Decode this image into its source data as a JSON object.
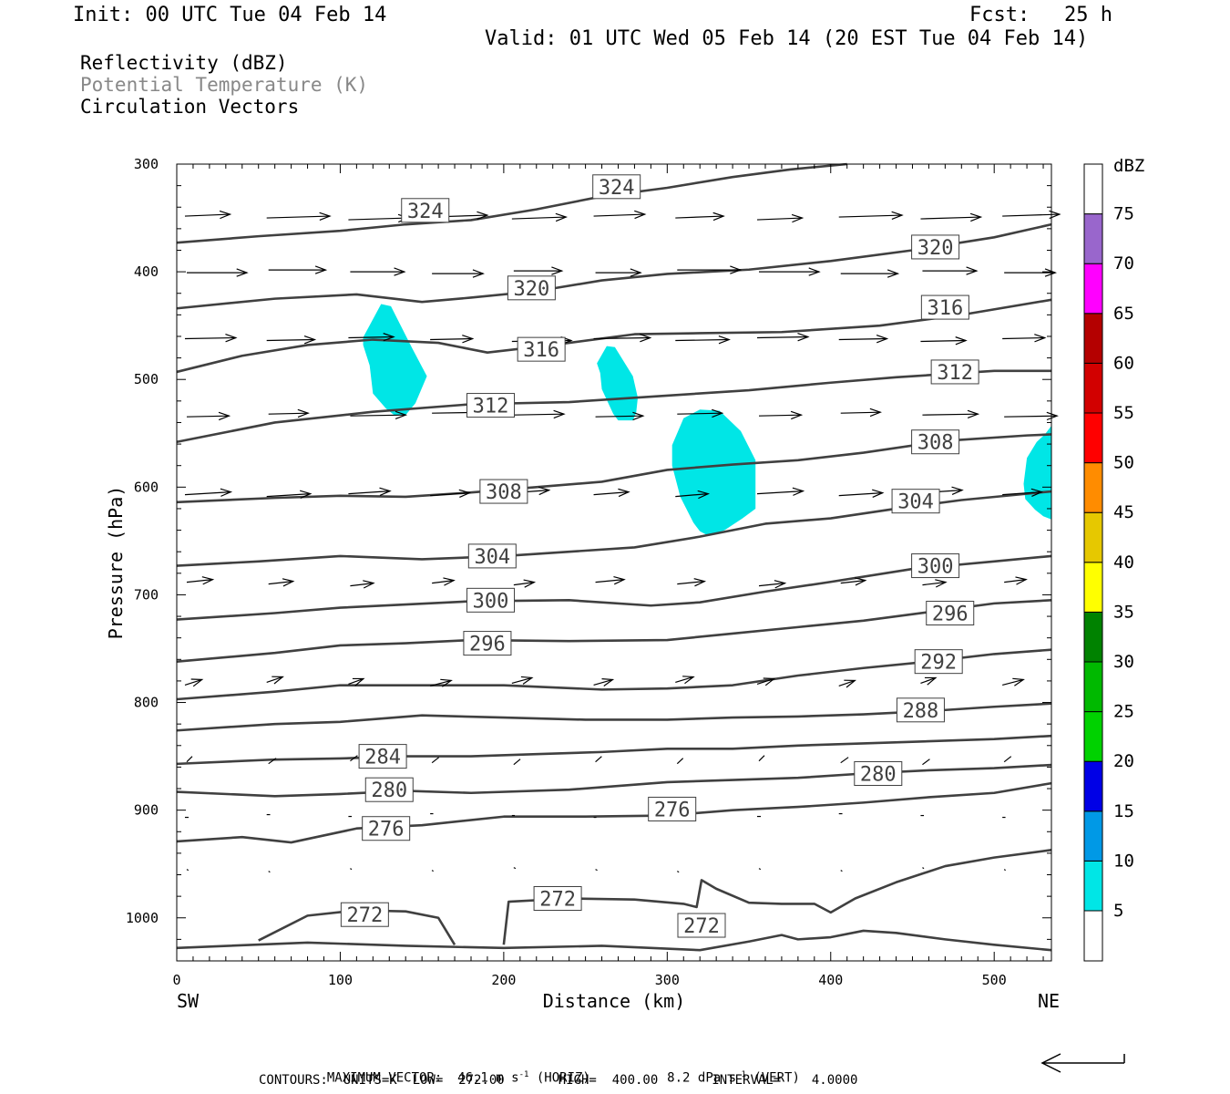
{
  "header": {
    "init": "Init: 00 UTC Tue 04 Feb 14",
    "fcst_label": "Fcst:",
    "fcst_value": "25 h",
    "valid": "Valid: 01 UTC Wed 05 Feb 14 (20 EST Tue 04 Feb 14)",
    "field1": "Reflectivity (dBZ)",
    "field2": "Potential Temperature (K)",
    "field3": "Circulation Vectors"
  },
  "footer": {
    "max_vector": "MAXIMUM VECTOR:  46.1 m s",
    "max_vector_horiz": "(HORIZ)",
    "max_vector_vert": "8.2 dPa s",
    "max_vector_vert_tail": "(VERT)",
    "exp": "-1",
    "contours": "CONTOURS:  UNITS=K  LOW=  272.00       HIGH=  400.00       INTERVAL=    4.0000"
  },
  "axis": {
    "ylabel": "Pressure (hPa)",
    "xlabel": "Distance (km)",
    "left_end": "SW",
    "right_end": "NE"
  },
  "colorbar": {
    "title": "dBZ",
    "ticks": [
      "5",
      "10",
      "15",
      "20",
      "25",
      "30",
      "35",
      "40",
      "45",
      "50",
      "55",
      "60",
      "65",
      "70",
      "75"
    ],
    "colors": [
      "#00e6e6",
      "#0099e6",
      "#0000e6",
      "#00d200",
      "#00b900",
      "#008200",
      "#ffff00",
      "#e6c800",
      "#ff8c00",
      "#ff0000",
      "#d20000",
      "#b40000",
      "#ff00ff",
      "#9966cc",
      "#ffffff"
    ]
  },
  "chart_data": {
    "type": "cross-section",
    "x_range": [
      0,
      535
    ],
    "y_range_hPa": [
      300,
      1040
    ],
    "x_ticks": [
      0,
      100,
      200,
      300,
      400,
      500
    ],
    "y_ticks": [
      300,
      400,
      500,
      600,
      700,
      800,
      900,
      1000
    ],
    "theta_contours": [
      {
        "label": "324",
        "points": [
          [
            0,
            373
          ],
          [
            50,
            367
          ],
          [
            100,
            362
          ],
          [
            140,
            356
          ],
          [
            180,
            352
          ],
          [
            220,
            342
          ],
          [
            260,
            330
          ],
          [
            300,
            322
          ],
          [
            340,
            312
          ],
          [
            375,
            305
          ],
          [
            410,
            300
          ]
        ],
        "labels_at": [
          [
            152,
            343
          ],
          [
            269,
            321
          ]
        ]
      },
      {
        "label": "320",
        "points": [
          [
            0,
            434
          ],
          [
            60,
            425
          ],
          [
            110,
            421
          ],
          [
            150,
            428
          ],
          [
            180,
            424
          ],
          [
            220,
            418
          ],
          [
            260,
            408
          ],
          [
            300,
            402
          ],
          [
            350,
            398
          ],
          [
            400,
            390
          ],
          [
            450,
            380
          ],
          [
            500,
            368
          ],
          [
            535,
            356
          ]
        ],
        "labels_at": [
          [
            217,
            415
          ],
          [
            464,
            377
          ]
        ]
      },
      {
        "label": "316",
        "points": [
          [
            0,
            493
          ],
          [
            40,
            478
          ],
          [
            80,
            468
          ],
          [
            120,
            463
          ],
          [
            160,
            466
          ],
          [
            190,
            475
          ],
          [
            230,
            468
          ],
          [
            280,
            458
          ],
          [
            320,
            457
          ],
          [
            370,
            456
          ],
          [
            430,
            450
          ],
          [
            480,
            440
          ],
          [
            535,
            426
          ]
        ],
        "labels_at": [
          [
            223,
            472
          ],
          [
            470,
            433
          ]
        ]
      },
      {
        "label": "312",
        "points": [
          [
            0,
            558
          ],
          [
            60,
            540
          ],
          [
            120,
            530
          ],
          [
            180,
            523
          ],
          [
            240,
            521
          ],
          [
            300,
            515
          ],
          [
            350,
            510
          ],
          [
            400,
            503
          ],
          [
            440,
            498
          ],
          [
            500,
            492
          ],
          [
            535,
            492
          ]
        ],
        "labels_at": [
          [
            192,
            524
          ],
          [
            476,
            493
          ]
        ]
      },
      {
        "label": "308",
        "points": [
          [
            0,
            614
          ],
          [
            60,
            610
          ],
          [
            100,
            608
          ],
          [
            140,
            609
          ],
          [
            180,
            605
          ],
          [
            220,
            600
          ],
          [
            260,
            595
          ],
          [
            300,
            584
          ],
          [
            340,
            579
          ],
          [
            380,
            575
          ],
          [
            420,
            568
          ],
          [
            470,
            557
          ],
          [
            520,
            552
          ],
          [
            535,
            551
          ]
        ],
        "labels_at": [
          [
            200,
            604
          ],
          [
            464,
            558
          ]
        ]
      },
      {
        "label": "304",
        "points": [
          [
            0,
            673
          ],
          [
            50,
            669
          ],
          [
            100,
            664
          ],
          [
            150,
            667
          ],
          [
            200,
            664
          ],
          [
            240,
            660
          ],
          [
            280,
            656
          ],
          [
            320,
            646
          ],
          [
            360,
            634
          ],
          [
            400,
            629
          ],
          [
            440,
            620
          ],
          [
            480,
            612
          ],
          [
            535,
            604
          ]
        ],
        "labels_at": [
          [
            193,
            664
          ],
          [
            452,
            613
          ]
        ]
      },
      {
        "label": "300",
        "points": [
          [
            0,
            723
          ],
          [
            60,
            717
          ],
          [
            100,
            712
          ],
          [
            140,
            709
          ],
          [
            180,
            706
          ],
          [
            240,
            705
          ],
          [
            290,
            710
          ],
          [
            320,
            707
          ],
          [
            360,
            697
          ],
          [
            400,
            688
          ],
          [
            450,
            676
          ],
          [
            500,
            669
          ],
          [
            535,
            664
          ]
        ],
        "labels_at": [
          [
            192,
            705
          ],
          [
            464,
            673
          ]
        ]
      },
      {
        "label": "296",
        "points": [
          [
            0,
            762
          ],
          [
            60,
            754
          ],
          [
            100,
            747
          ],
          [
            140,
            745
          ],
          [
            180,
            742
          ],
          [
            240,
            743
          ],
          [
            300,
            742
          ],
          [
            340,
            736
          ],
          [
            380,
            730
          ],
          [
            420,
            724
          ],
          [
            460,
            716
          ],
          [
            500,
            708
          ],
          [
            535,
            705
          ]
        ],
        "labels_at": [
          [
            190,
            745
          ],
          [
            473,
            717
          ]
        ]
      },
      {
        "label": "292",
        "points": [
          [
            0,
            797
          ],
          [
            60,
            790
          ],
          [
            100,
            784
          ],
          [
            150,
            784
          ],
          [
            200,
            784
          ],
          [
            260,
            788
          ],
          [
            300,
            787
          ],
          [
            340,
            784
          ],
          [
            380,
            775
          ],
          [
            420,
            768
          ],
          [
            460,
            762
          ],
          [
            500,
            755
          ],
          [
            535,
            751
          ]
        ],
        "labels_at": [
          466,
          762
        ]
      },
      {
        "label": "288",
        "points": [
          [
            0,
            826
          ],
          [
            60,
            820
          ],
          [
            100,
            818
          ],
          [
            150,
            812
          ],
          [
            200,
            814
          ],
          [
            250,
            816
          ],
          [
            300,
            816
          ],
          [
            340,
            814
          ],
          [
            380,
            813
          ],
          [
            420,
            811
          ],
          [
            460,
            808
          ],
          [
            500,
            804
          ],
          [
            535,
            801
          ]
        ],
        "labels_at": [
          [
            455,
            807
          ]
        ]
      },
      {
        "label": "284",
        "points": [
          [
            0,
            857
          ],
          [
            60,
            853
          ],
          [
            100,
            852
          ],
          [
            140,
            850
          ],
          [
            180,
            850
          ],
          [
            220,
            848
          ],
          [
            260,
            846
          ],
          [
            300,
            843
          ],
          [
            340,
            843
          ],
          [
            380,
            840
          ],
          [
            420,
            838
          ],
          [
            460,
            836
          ],
          [
            500,
            834
          ],
          [
            535,
            831
          ]
        ],
        "labels_at": [
          [
            126,
            850
          ]
        ]
      },
      {
        "label": "280",
        "points": [
          [
            0,
            883
          ],
          [
            60,
            887
          ],
          [
            100,
            885
          ],
          [
            140,
            882
          ],
          [
            180,
            884
          ],
          [
            240,
            881
          ],
          [
            300,
            874
          ],
          [
            340,
            872
          ],
          [
            380,
            870
          ],
          [
            420,
            866
          ],
          [
            460,
            863
          ],
          [
            500,
            861
          ],
          [
            535,
            858
          ]
        ],
        "labels_at": [
          [
            130,
            881
          ],
          [
            429,
            866
          ]
        ]
      },
      {
        "label": "276",
        "points": [
          [
            0,
            929
          ],
          [
            40,
            925
          ],
          [
            70,
            930
          ],
          [
            110,
            917
          ],
          [
            150,
            914
          ],
          [
            200,
            906
          ],
          [
            250,
            906
          ],
          [
            300,
            905
          ],
          [
            340,
            900
          ],
          [
            380,
            897
          ],
          [
            420,
            893
          ],
          [
            460,
            888
          ],
          [
            500,
            884
          ],
          [
            535,
            875
          ]
        ],
        "labels_at": [
          [
            128,
            917
          ],
          [
            303,
            899
          ]
        ]
      },
      {
        "label": "272",
        "points": [
          [
            50,
            1021
          ],
          [
            80,
            998
          ],
          [
            110,
            993
          ],
          [
            140,
            994
          ],
          [
            160,
            1000
          ],
          [
            170,
            1025
          ]
        ],
        "labels_at": [
          [
            115,
            997
          ],
          [
            233,
            982
          ],
          [
            321,
            1007
          ]
        ]
      },
      {
        "label": "272",
        "points": [
          [
            200,
            1025
          ],
          [
            203,
            985
          ],
          [
            240,
            982
          ],
          [
            280,
            983
          ],
          [
            310,
            987
          ],
          [
            318,
            990
          ],
          [
            321,
            965
          ],
          [
            330,
            973
          ],
          [
            350,
            986
          ],
          [
            370,
            987
          ],
          [
            390,
            987
          ],
          [
            400,
            995
          ],
          [
            415,
            982
          ],
          [
            440,
            967
          ],
          [
            470,
            952
          ],
          [
            500,
            944
          ],
          [
            535,
            937
          ]
        ],
        "labels_at": []
      },
      {
        "label": "272",
        "points": [
          [
            0,
            1028
          ],
          [
            80,
            1023
          ],
          [
            140,
            1026
          ],
          [
            200,
            1028
          ],
          [
            260,
            1026
          ],
          [
            320,
            1030
          ],
          [
            350,
            1022
          ],
          [
            370,
            1016
          ],
          [
            380,
            1020
          ],
          [
            400,
            1018
          ],
          [
            420,
            1012
          ],
          [
            440,
            1014
          ],
          [
            470,
            1020
          ],
          [
            500,
            1025
          ],
          [
            535,
            1030
          ]
        ],
        "labels_at": []
      }
    ],
    "reflectivity_cells_dBZ_5_to_10": [
      {
        "points": [
          [
            114,
            461
          ],
          [
            125,
            430
          ],
          [
            131,
            432
          ],
          [
            144,
            471
          ],
          [
            153,
            497
          ],
          [
            146,
            522
          ],
          [
            140,
            533
          ],
          [
            133,
            533
          ],
          [
            128,
            527
          ],
          [
            120,
            513
          ],
          [
            118,
            487
          ],
          [
            114,
            468
          ]
        ]
      },
      {
        "points": [
          [
            257,
            485
          ],
          [
            263,
            469
          ],
          [
            268,
            470
          ],
          [
            279,
            497
          ],
          [
            282,
            517
          ],
          [
            281,
            531
          ],
          [
            279,
            538
          ],
          [
            270,
            538
          ],
          [
            267,
            532
          ],
          [
            260,
            509
          ],
          [
            259,
            494
          ]
        ]
      },
      {
        "points": [
          [
            303,
            561
          ],
          [
            310,
            536
          ],
          [
            320,
            528
          ],
          [
            332,
            529
          ],
          [
            345,
            548
          ],
          [
            354,
            575
          ],
          [
            354,
            620
          ],
          [
            346,
            629
          ],
          [
            335,
            640
          ],
          [
            325,
            645
          ],
          [
            320,
            641
          ],
          [
            316,
            633
          ],
          [
            308,
            609
          ],
          [
            303,
            580
          ]
        ]
      },
      {
        "points": [
          [
            535,
            543
          ],
          [
            531,
            551
          ],
          [
            526,
            558
          ],
          [
            520,
            573
          ],
          [
            518,
            597
          ],
          [
            519,
            611
          ],
          [
            525,
            621
          ],
          [
            530,
            627
          ],
          [
            535,
            630
          ]
        ]
      }
    ],
    "vectors": {
      "max_horizontal_ms": 46.1,
      "max_vertical_dPa_s": 8.2
    }
  }
}
